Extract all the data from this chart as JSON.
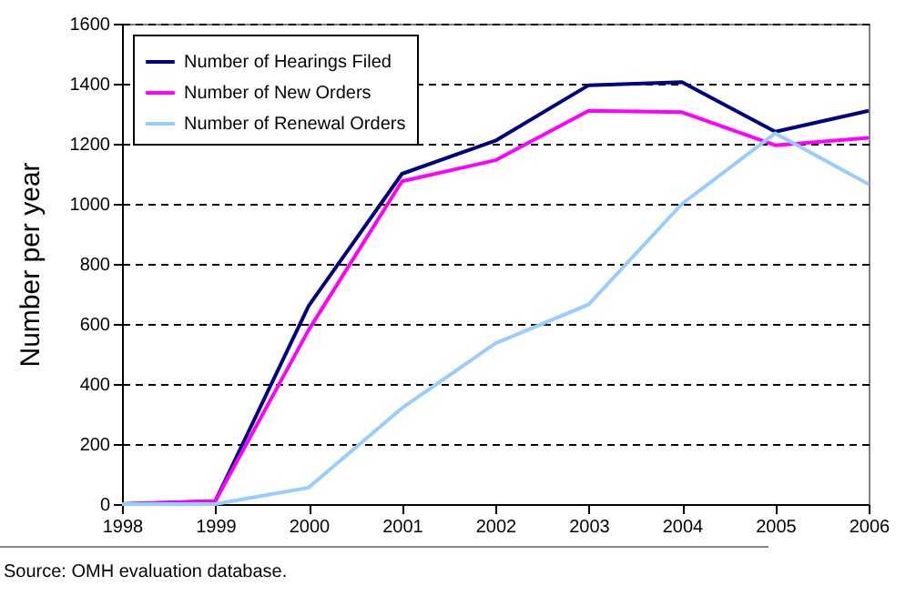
{
  "chart_data": {
    "type": "line",
    "ylabel": "Number per year",
    "x": [
      1998,
      1999,
      2000,
      2001,
      2002,
      2003,
      2004,
      2005,
      2006
    ],
    "xlim": [
      1998,
      2006
    ],
    "xticks": [
      1998,
      1999,
      2000,
      2001,
      2002,
      2003,
      2004,
      2005,
      2006
    ],
    "ylim": [
      0,
      1600
    ],
    "yticks": [
      0,
      200,
      400,
      600,
      800,
      1000,
      1200,
      1400,
      1600
    ],
    "grid": "y",
    "legend": "top left",
    "marker": "none",
    "line_style": "solid",
    "series": [
      {
        "name": "Number of Hearings Filed",
        "color": "#000080",
        "values": [
          0,
          10,
          660,
          1100,
          1210,
          1395,
          1405,
          1240,
          1310
        ]
      },
      {
        "name": "Number of New Orders",
        "color": "#ff00ff",
        "values": [
          0,
          10,
          580,
          1075,
          1145,
          1310,
          1305,
          1195,
          1220
        ]
      },
      {
        "name": "Number of Renewal Orders",
        "color": "#99ccff",
        "values": [
          0,
          0,
          55,
          320,
          535,
          665,
          1000,
          1235,
          1065
        ]
      }
    ],
    "annotations": [
      "Source: OMH evaluation database."
    ]
  }
}
